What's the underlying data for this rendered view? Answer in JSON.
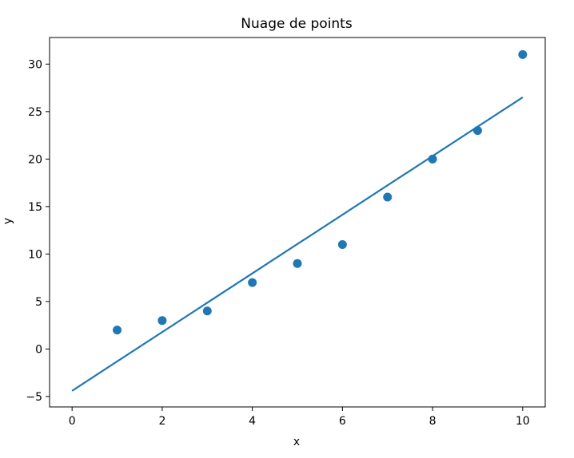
{
  "chart_data": {
    "type": "scatter",
    "title": "Nuage de points",
    "xlabel": "x",
    "ylabel": "y",
    "xlim": [
      -0.5,
      10.5
    ],
    "ylim": [
      -6.1,
      32.8
    ],
    "xticks": [
      0,
      2,
      4,
      6,
      8,
      10
    ],
    "yticks": [
      -5,
      0,
      5,
      10,
      15,
      20,
      25,
      30
    ],
    "ytick_labels": [
      "−5",
      "0",
      "5",
      "10",
      "15",
      "20",
      "25",
      "30"
    ],
    "grid": false,
    "series": [
      {
        "kind": "scatter",
        "color": "#1f77b4",
        "x": [
          1,
          2,
          3,
          4,
          5,
          6,
          7,
          8,
          9,
          10
        ],
        "y": [
          2,
          3,
          4,
          7,
          9,
          11,
          16,
          20,
          23,
          31
        ]
      },
      {
        "kind": "line",
        "color": "#1f77b4",
        "x": [
          0,
          10
        ],
        "y": [
          -4.4,
          26.5
        ]
      }
    ]
  }
}
